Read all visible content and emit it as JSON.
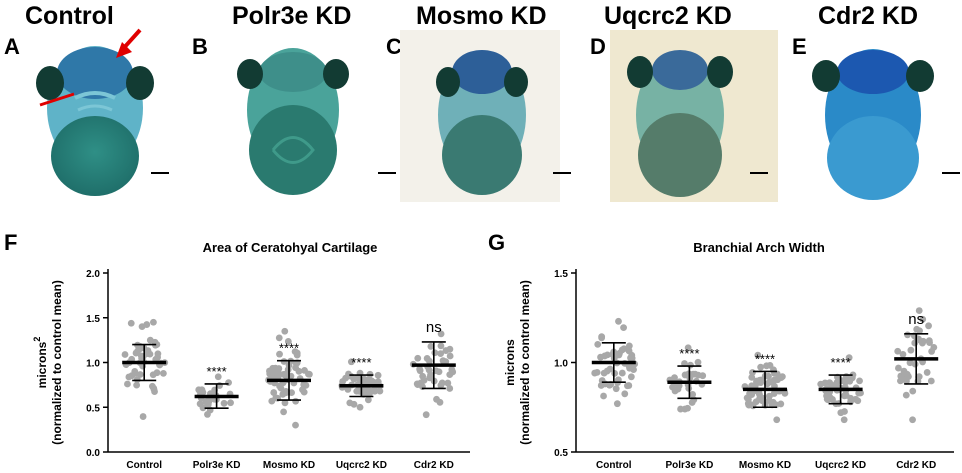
{
  "panels": {
    "A": {
      "letter": "A",
      "title": "Control"
    },
    "B": {
      "letter": "B",
      "title": "Polr3e KD"
    },
    "C": {
      "letter": "C",
      "title": "Mosmo KD"
    },
    "D": {
      "letter": "D",
      "title": "Uqcrc2 KD"
    },
    "E": {
      "letter": "E",
      "title": "Cdr2 KD"
    }
  },
  "chart_data": [
    {
      "type": "scatter",
      "letter": "F",
      "title": "Area of Ceratohyal Cartilage",
      "ylabel_line1": "microns",
      "ylabel_sup": "2",
      "ylabel_line2": "(normalized to control mean)",
      "ylim": [
        0,
        2.0
      ],
      "yticks": [
        "0.0",
        "0.5",
        "1.0",
        "1.5",
        "2.0"
      ],
      "categories": [
        "Control",
        "Polr3e KD",
        "Mosmo KD",
        "Uqcrc2 KD",
        "Cdr2 KD"
      ],
      "means": [
        1.0,
        0.62,
        0.8,
        0.74,
        0.97
      ],
      "sd_low": [
        0.8,
        0.49,
        0.58,
        0.62,
        0.71
      ],
      "sd_high": [
        1.2,
        0.76,
        1.02,
        0.86,
        1.23
      ],
      "significance": [
        "",
        "****",
        "****",
        "****",
        "ns"
      ],
      "point_counts": [
        50,
        30,
        60,
        50,
        40
      ],
      "point_ranges": [
        [
          0.33,
          1.45
        ],
        [
          0.42,
          0.85
        ],
        [
          0.3,
          1.37
        ],
        [
          0.5,
          1.02
        ],
        [
          0.33,
          1.32
        ]
      ]
    },
    {
      "type": "scatter",
      "letter": "G",
      "title": "Branchial Arch Width",
      "ylabel_line1": "microns",
      "ylabel_line2": "(normalized to control mean)",
      "ylim": [
        0.5,
        1.5
      ],
      "yticks": [
        "0.5",
        "1.0",
        "1.5"
      ],
      "categories": [
        "Control",
        "Polr3e KD",
        "Mosmo KD",
        "Uqcrc2 KD",
        "Cdr2 KD"
      ],
      "means": [
        1.0,
        0.89,
        0.85,
        0.85,
        1.02
      ],
      "sd_low": [
        0.89,
        0.8,
        0.75,
        0.77,
        0.88
      ],
      "sd_high": [
        1.11,
        0.98,
        0.95,
        0.93,
        1.16
      ],
      "significance": [
        "",
        "****",
        "****",
        "****",
        "ns"
      ],
      "point_counts": [
        50,
        30,
        60,
        45,
        40
      ],
      "point_ranges": [
        [
          0.77,
          1.23
        ],
        [
          0.74,
          1.1
        ],
        [
          0.68,
          1.05
        ],
        [
          0.68,
          1.03
        ],
        [
          0.65,
          1.29
        ]
      ]
    }
  ]
}
